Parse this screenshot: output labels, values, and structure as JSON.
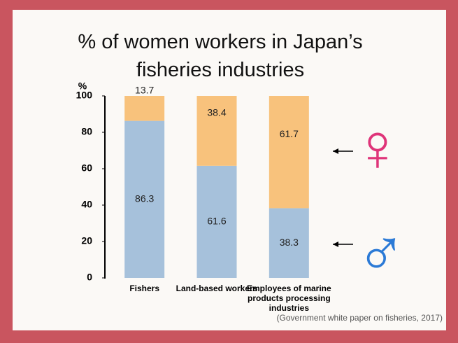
{
  "chart_data": {
    "type": "stacked_bar",
    "title": "% of women workers in Japan’s fisheries industries",
    "ylabel": "%",
    "categories": [
      "Fishers",
      "Land-based workers",
      "Employees of marine products processing industries"
    ],
    "series": [
      {
        "name": "♂",
        "color": "#a6c1db",
        "values": [
          86.3,
          61.6,
          38.3
        ]
      },
      {
        "name": "♀",
        "color": "#f8c27c",
        "values": [
          13.7,
          38.4,
          61.7
        ]
      }
    ],
    "legend_colors": [
      "#2b7ad6",
      "#df3479"
    ],
    "ylim": [
      0,
      100
    ],
    "yticks": [
      0,
      20,
      40,
      60,
      80,
      100
    ],
    "source": "(Government white paper on fisheries, 2017)"
  }
}
